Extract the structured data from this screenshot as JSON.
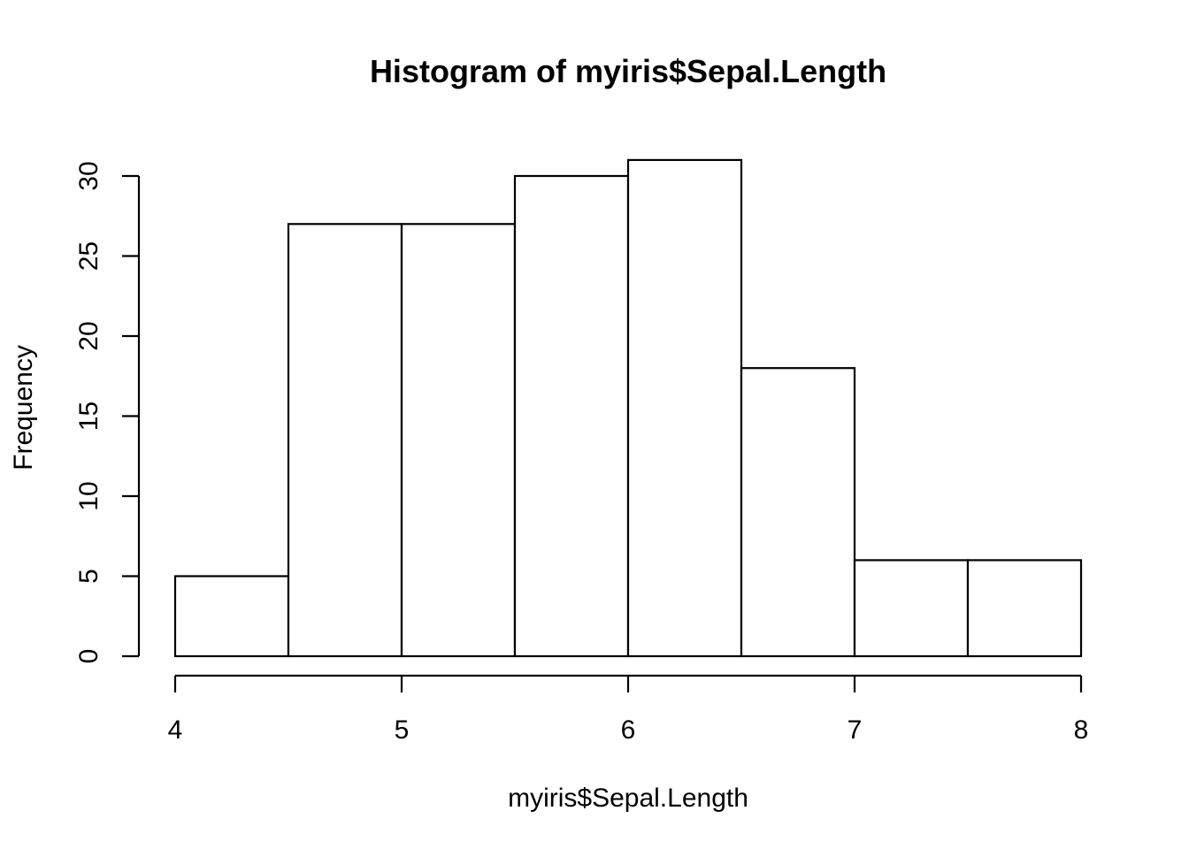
{
  "chart_data": {
    "type": "bar",
    "title": "Histogram of myiris$Sepal.Length",
    "xlabel": "myiris$Sepal.Length",
    "ylabel": "Frequency",
    "bins": [
      {
        "start": 4.0,
        "end": 4.5,
        "count": 5
      },
      {
        "start": 4.5,
        "end": 5.0,
        "count": 27
      },
      {
        "start": 5.0,
        "end": 5.5,
        "count": 27
      },
      {
        "start": 5.5,
        "end": 6.0,
        "count": 30
      },
      {
        "start": 6.0,
        "end": 6.5,
        "count": 31
      },
      {
        "start": 6.5,
        "end": 7.0,
        "count": 18
      },
      {
        "start": 7.0,
        "end": 7.5,
        "count": 6
      },
      {
        "start": 7.5,
        "end": 8.0,
        "count": 6
      }
    ],
    "xlim": [
      4,
      8
    ],
    "ylim": [
      0,
      31
    ],
    "x_ticks": [
      "4",
      "5",
      "6",
      "7",
      "8"
    ],
    "y_ticks": [
      "0",
      "5",
      "10",
      "15",
      "20",
      "25",
      "30"
    ],
    "colors": {
      "fill": "#ffffff",
      "stroke": "#000000"
    },
    "grid": false,
    "legend": "none"
  }
}
